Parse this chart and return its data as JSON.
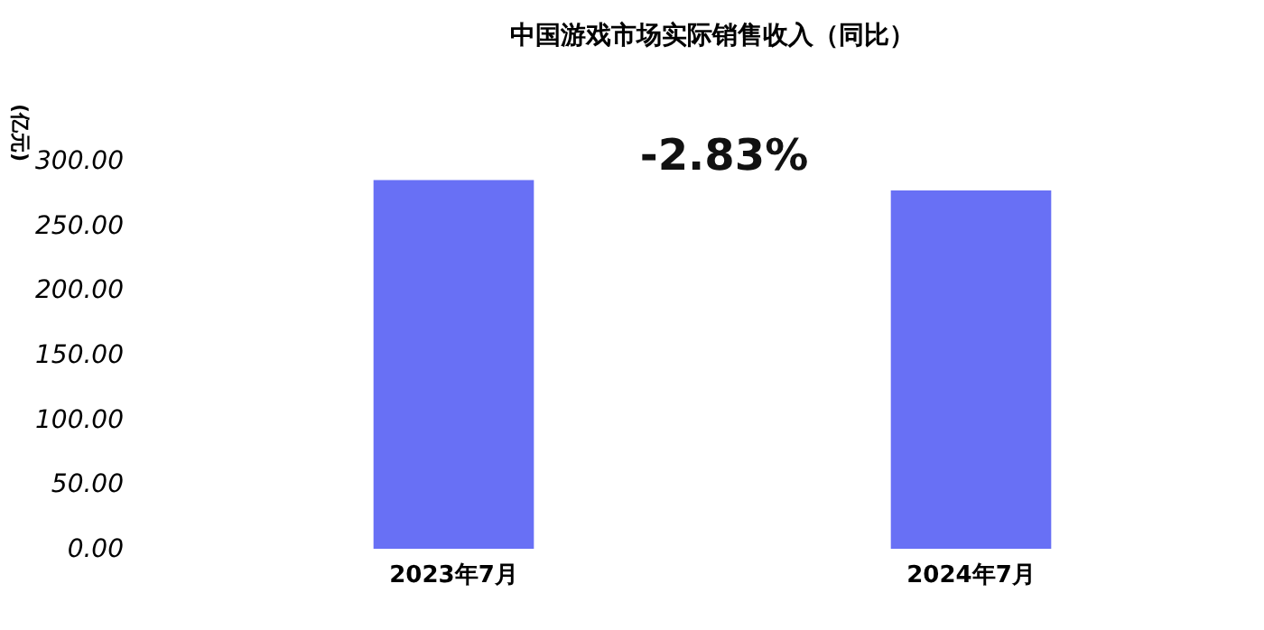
{
  "chart_data": {
    "type": "bar",
    "title": "中国游戏市场实际销售收入（同比）",
    "ylabel": "(亿元)",
    "categories": [
      "2023年7月",
      "2024年7月"
    ],
    "values": [
      285,
      277
    ],
    "color": "#6870f5",
    "ylim": [
      0,
      300
    ],
    "yticks": [
      {
        "value": 0,
        "label": "0.00"
      },
      {
        "value": 50,
        "label": "50.00"
      },
      {
        "value": 100,
        "label": "100.00"
      },
      {
        "value": 150,
        "label": "150.00"
      },
      {
        "value": 200,
        "label": "200.00"
      },
      {
        "value": 250,
        "label": "250.00"
      },
      {
        "value": 300,
        "label": "300.00"
      }
    ],
    "annotations": [
      "-2.83%"
    ]
  }
}
